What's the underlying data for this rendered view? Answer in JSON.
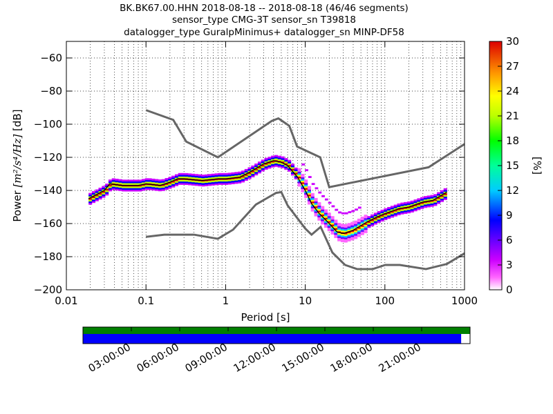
{
  "title_lines": [
    "BK.BK67.00.HHN   2018-08-18 -- 2018-08-18  (46/46 segments)",
    "sensor_type CMG-3T sensor_sn T39818",
    "datalogger_type GuralpMinimus+ datalogger_sn MINP-DF58"
  ],
  "chart_data": [
    {
      "type": "heatmap",
      "xlabel": "Period [s]",
      "ylabel_prefix": "Power ",
      "ylabel_units": "[m²/s⁴/Hz]",
      "ylabel_suffix": " [dB]",
      "x_scale": "log",
      "xlim": [
        0.01,
        1000
      ],
      "ylim": [
        -200,
        -50
      ],
      "x_ticks": [
        0.01,
        0.1,
        1,
        10,
        100,
        1000
      ],
      "x_tick_labels": [
        "0.01",
        "0.1",
        "1",
        "10",
        "100",
        "1000"
      ],
      "y_ticks": [
        -60,
        -80,
        -100,
        -120,
        -140,
        -160,
        -180,
        -200
      ],
      "y_tick_labels": [
        "−60",
        "−80",
        "−100",
        "−120",
        "−140",
        "−160",
        "−180",
        "−200"
      ],
      "grid": "dotted vertical lines at log sub-decades, dotted horizontal at each y tick",
      "colorbar": {
        "label": "[%]",
        "range": [
          0,
          30
        ],
        "ticks": [
          "0",
          "3",
          "6",
          "9",
          "12",
          "15",
          "18",
          "21",
          "24",
          "27",
          "30"
        ]
      },
      "noise_model_high": {
        "x": [
          0.1,
          0.22,
          0.32,
          0.8,
          3.8,
          4.6,
          6.3,
          7.9,
          15.4,
          20,
          354,
          1000
        ],
        "y": [
          -91.5,
          -97.4,
          -110.5,
          -120,
          -98,
          -96.5,
          -101,
          -113.5,
          -120,
          -138,
          -126,
          -112
        ]
      },
      "noise_model_low": {
        "x": [
          0.1,
          0.17,
          0.4,
          0.8,
          1.24,
          2.4,
          4.3,
          5,
          6,
          10,
          12,
          15.6,
          21.9,
          31.6,
          45,
          70,
          101,
          154,
          328,
          600,
          1000
        ],
        "y": [
          -168,
          -166.7,
          -166.7,
          -169.2,
          -163.7,
          -148.5,
          -141.5,
          -141,
          -149,
          -163,
          -166.7,
          -162,
          -177.5,
          -185,
          -187.5,
          -187.5,
          -185,
          -185,
          -187.5,
          -184.4,
          -178
        ]
      },
      "mode_line": {
        "x": [
          0.019,
          0.025,
          0.03,
          0.035,
          0.05,
          0.08,
          0.1,
          0.15,
          0.2,
          0.25,
          0.3,
          0.5,
          0.8,
          1,
          1.5,
          2,
          3,
          4,
          5,
          6,
          8,
          10,
          12,
          15,
          20,
          25,
          30,
          40,
          60,
          80,
          100,
          150,
          200,
          300,
          400,
          600
        ],
        "y": [
          -145,
          -142,
          -140,
          -136,
          -137,
          -137,
          -136,
          -137,
          -135,
          -133,
          -133,
          -134,
          -133,
          -133,
          -132,
          -129,
          -124,
          -122,
          -123,
          -125,
          -132,
          -140,
          -148,
          -154,
          -160,
          -165,
          -166,
          -164,
          -159,
          -156,
          -154,
          -151,
          -150,
          -147,
          -146,
          -141
        ]
      }
    },
    {
      "type": "bar",
      "orientation": "timeline",
      "x_tick_labels": [
        "03:00:00",
        "06:00:00",
        "09:00:00",
        "12:00:00",
        "15:00:00",
        "18:00:00",
        "21:00:00"
      ],
      "data_availability_fraction": 1.0,
      "psd_coverage_fraction": 0.977,
      "colors": {
        "availability": "#008000",
        "coverage": "#0000ff"
      }
    }
  ]
}
